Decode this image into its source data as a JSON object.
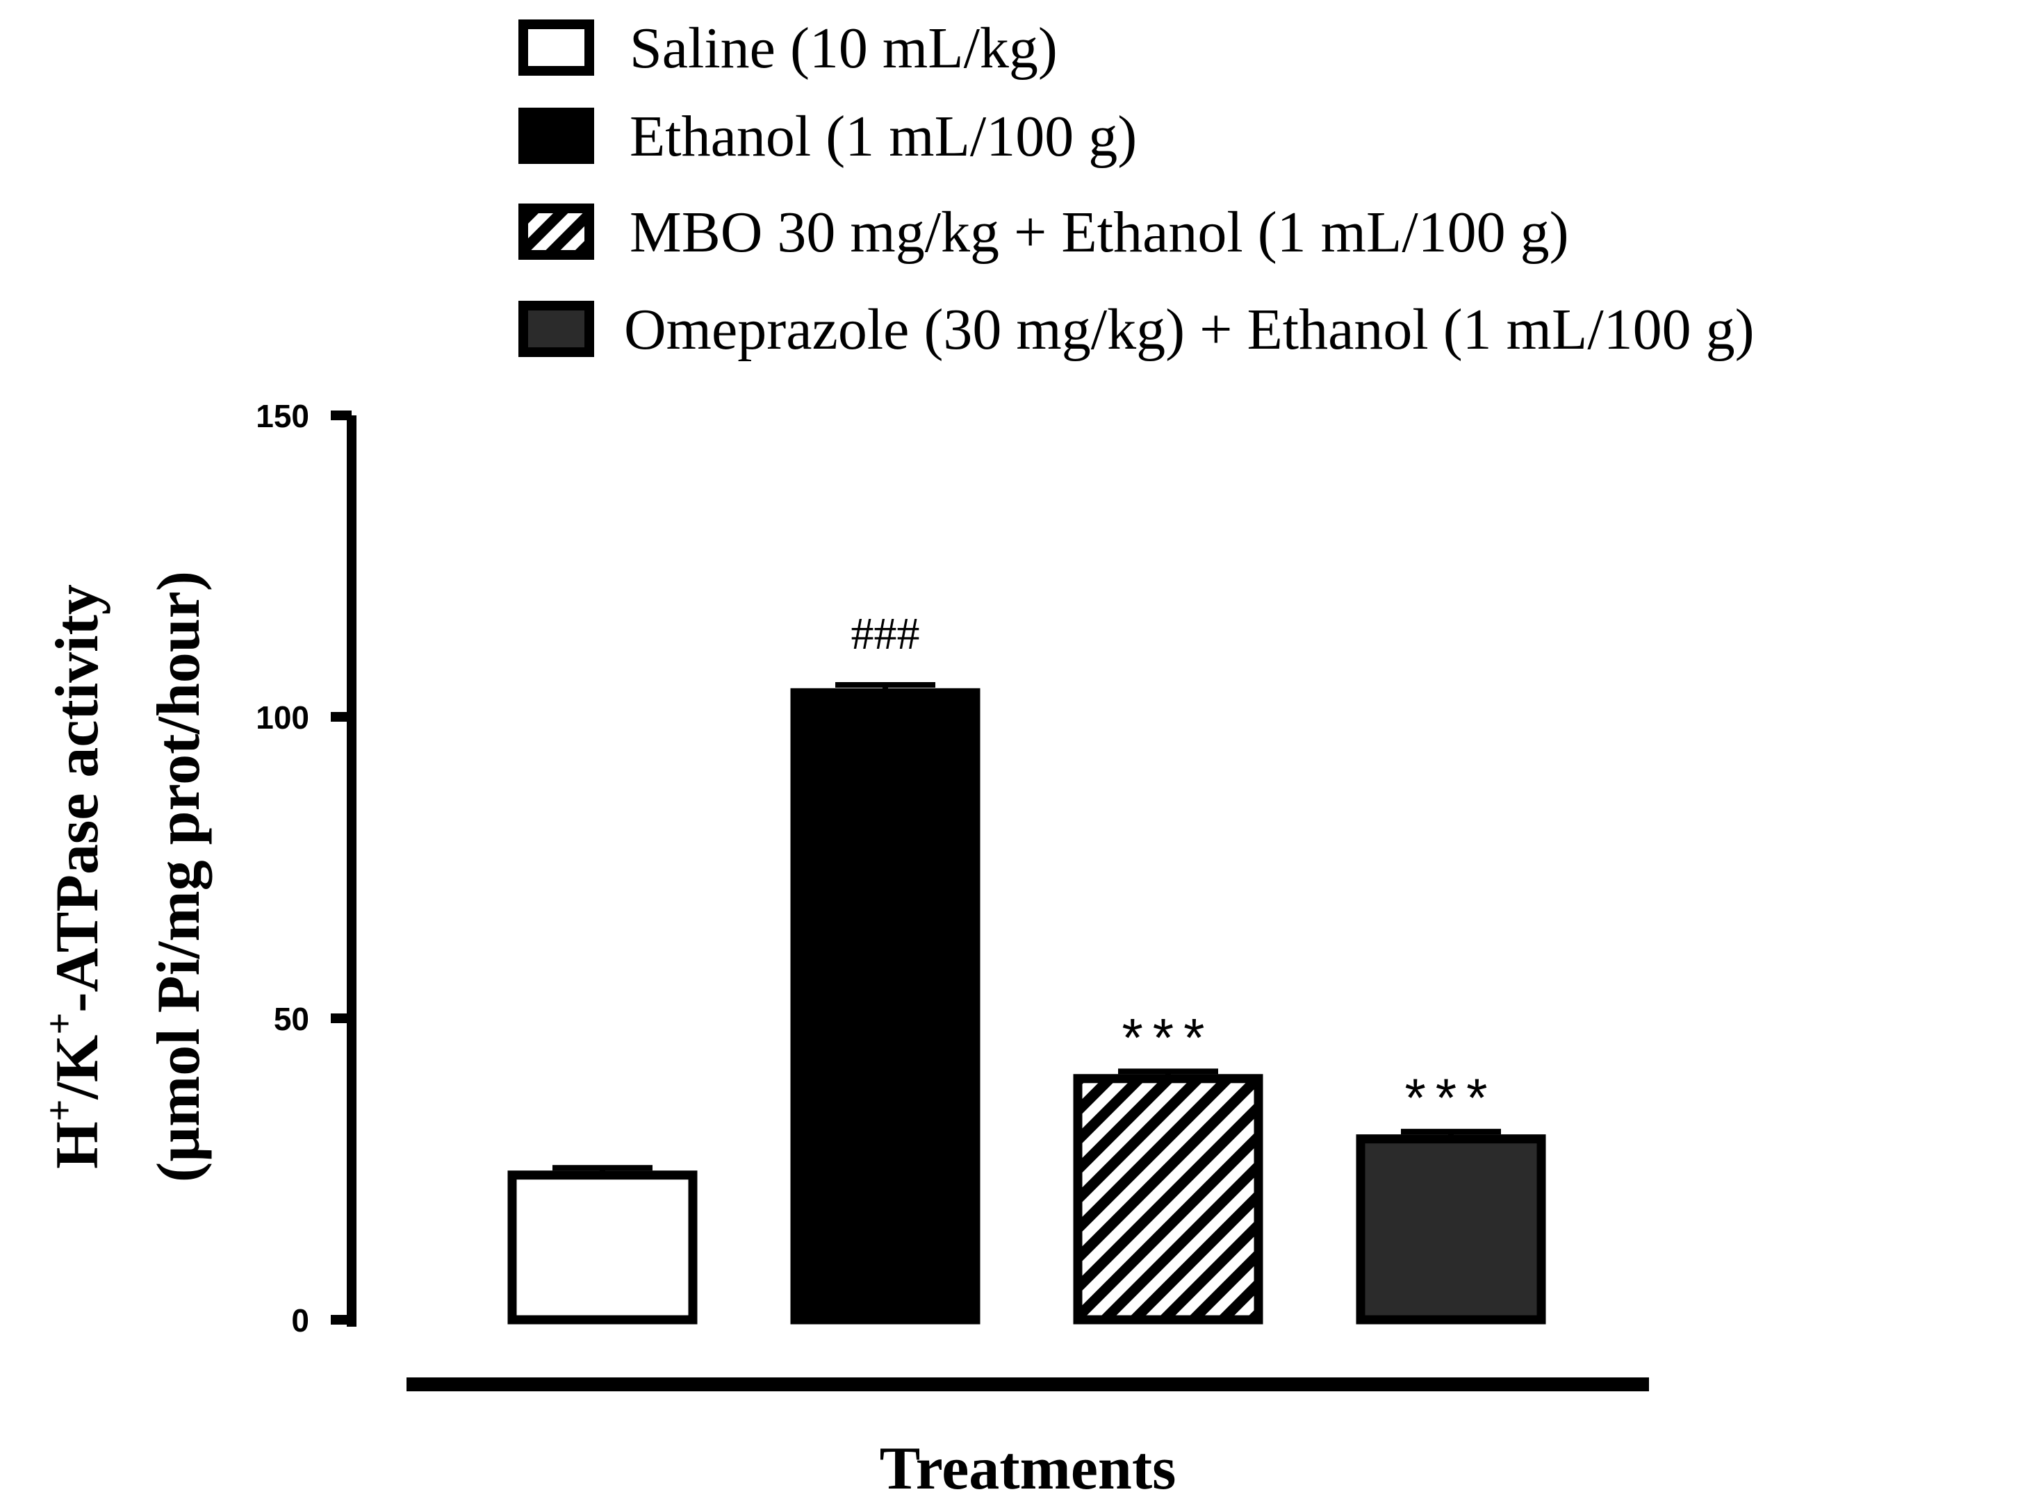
{
  "chart_data": {
    "type": "bar",
    "title": "",
    "xlabel": "Treatments",
    "ylabel": {
      "line1_parts": [
        "H",
        "+",
        "/K",
        "+",
        "-ATPase activity"
      ],
      "line2": "(µmol Pi/mg prot/hour)"
    },
    "ylim": [
      0,
      150
    ],
    "yticks": [
      "0",
      "50",
      "100",
      "150"
    ],
    "ytick_values": [
      0,
      50,
      100,
      150
    ],
    "grid": false,
    "legend_position": "top",
    "categories": [
      "Saline (10 mL/kg)",
      "Ethanol (1 mL/100 g)",
      "MBO 30 mg/kg + Ethanol (1 mL/100 g)",
      "Omeprazole (30 mg/kg) + Ethanol (1 mL/100 g)"
    ],
    "values": [
      24,
      104,
      40,
      30
    ],
    "errors": [
      1.2,
      1.3,
      1.2,
      1.2
    ],
    "annotations": [
      "",
      "###",
      "***",
      "***"
    ],
    "fills": [
      "white",
      "black",
      "diagonal-stripes",
      "checker"
    ],
    "colors": {
      "outline": "#000000",
      "solid": "#000000",
      "empty": "#ffffff",
      "checker_dark": "#2b2b2b"
    }
  }
}
